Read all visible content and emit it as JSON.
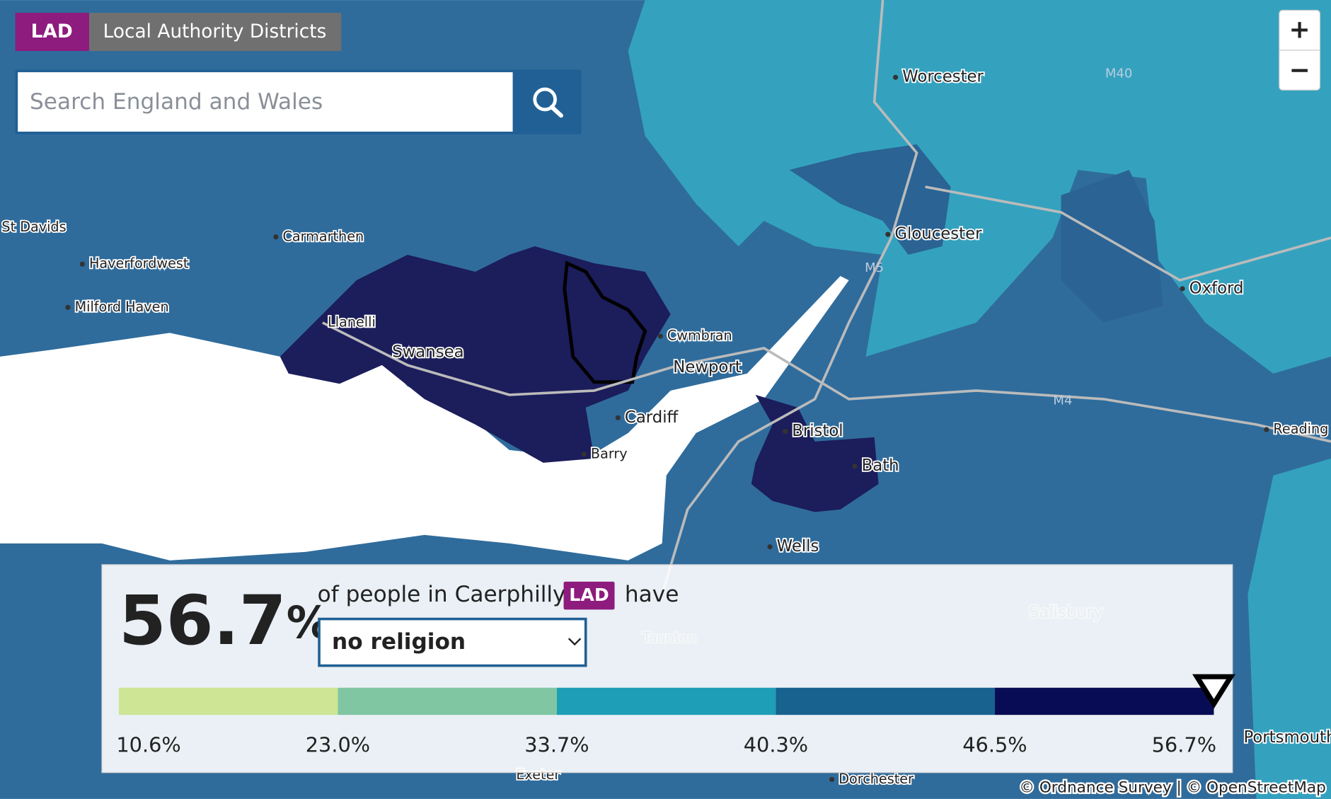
{
  "layer": {
    "badge": "LAD",
    "name": "Local Authority Districts"
  },
  "search": {
    "placeholder": "Search England and Wales"
  },
  "zoom": {
    "in": "+",
    "out": "−"
  },
  "places": [
    "St Davids",
    "Carmarthen",
    "Haverfordwest",
    "Milford Haven",
    "Llanelli",
    "Swansea",
    "Cwmbran",
    "Newport",
    "Cardiff",
    "Barry",
    "Bristol",
    "Bath",
    "Wells",
    "Worcester",
    "Gloucester",
    "Oxford",
    "Reading",
    "Portsmouth",
    "Dorchester",
    "Exeter",
    "Salisbury",
    "Taunton"
  ],
  "roads": [
    "M40",
    "M5",
    "M4"
  ],
  "panel": {
    "value": "56.7",
    "unit": "%",
    "sentence_start": "of people in Caerphilly",
    "badge": "LAD",
    "sentence_end": "have",
    "selection": "no religion",
    "legend": {
      "colors": [
        "#cde594",
        "#80c6a3",
        "#1f9eb7",
        "#186290",
        "#080c54"
      ],
      "breaks": [
        "10.6%",
        "23.0%",
        "33.7%",
        "40.3%",
        "46.5%",
        "56.7%"
      ]
    }
  },
  "attribution": "© Ordnance Survey | © OpenStreetMap"
}
